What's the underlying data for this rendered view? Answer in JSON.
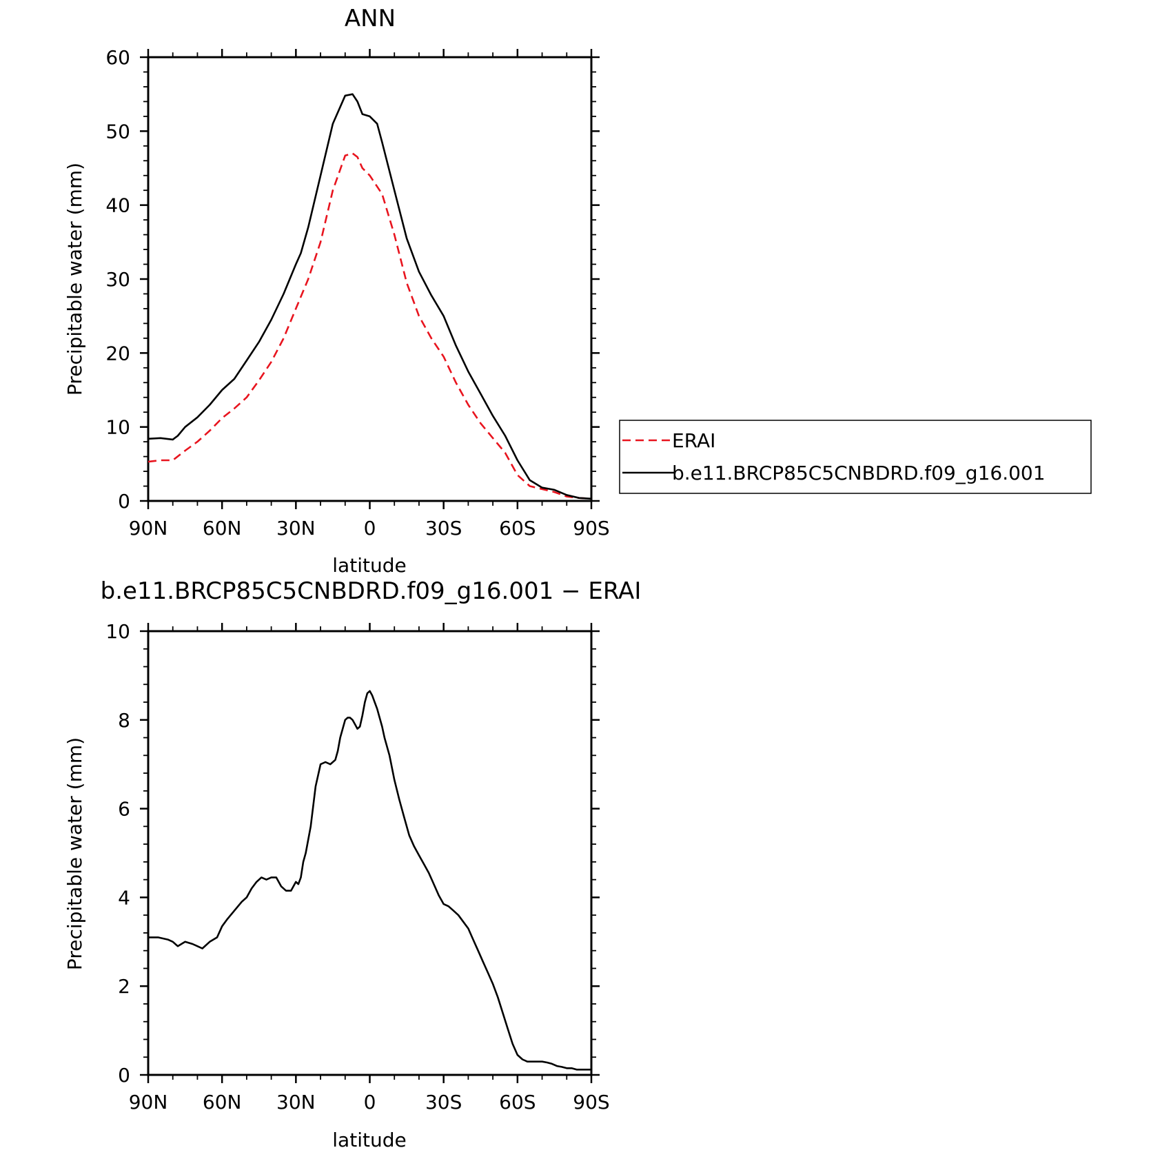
{
  "chart_data": [
    {
      "type": "line",
      "title": "ANN",
      "xlabel": "latitude",
      "ylabel": "Precipitable water (mm)",
      "xlim": [
        90,
        -90
      ],
      "ylim": [
        0,
        60
      ],
      "x_ticks": [
        90,
        60,
        30,
        0,
        -30,
        -60,
        -90
      ],
      "x_tick_labels": [
        "90N",
        "60N",
        "30N",
        "0",
        "30S",
        "60S",
        "90S"
      ],
      "y_ticks": [
        0,
        10,
        20,
        30,
        40,
        50,
        60
      ],
      "y_tick_labels": [
        "0",
        "10",
        "20",
        "30",
        "40",
        "50",
        "60"
      ],
      "legend_position": "right",
      "series": [
        {
          "name": "ERAI",
          "color": "#e8141e",
          "style": "dashed",
          "x": [
            90,
            85,
            80,
            75,
            70,
            65,
            60,
            55,
            50,
            45,
            40,
            35,
            30,
            25,
            20,
            15,
            10,
            7,
            5,
            3,
            0,
            -5,
            -10,
            -15,
            -20,
            -25,
            -30,
            -35,
            -40,
            -45,
            -50,
            -55,
            -60,
            -65,
            -70,
            -75,
            -80,
            -85,
            -90
          ],
          "values": [
            5.3,
            5.5,
            5.5,
            6.8,
            8.0,
            9.5,
            11.2,
            12.5,
            14.0,
            16.3,
            18.8,
            22.0,
            26.0,
            30.0,
            35.0,
            42.0,
            46.7,
            47.0,
            46.5,
            45.0,
            44.0,
            41.5,
            36.0,
            29.5,
            25.0,
            22.0,
            19.5,
            16.0,
            13.0,
            10.5,
            8.5,
            6.5,
            3.5,
            2.0,
            1.6,
            1.2,
            0.6,
            0.4,
            0.3
          ]
        },
        {
          "name": "b.e11.BRCP85C5CNBDRD.f09_g16.001",
          "color": "#000000",
          "style": "solid",
          "x": [
            90,
            85,
            80,
            78,
            75,
            70,
            65,
            60,
            55,
            50,
            45,
            40,
            35,
            30,
            28,
            25,
            20,
            15,
            10,
            7,
            5,
            3,
            0,
            -3,
            -5,
            -10,
            -15,
            -20,
            -25,
            -30,
            -35,
            -40,
            -45,
            -50,
            -55,
            -60,
            -65,
            -70,
            -75,
            -80,
            -85,
            -90
          ],
          "values": [
            8.4,
            8.5,
            8.3,
            8.8,
            10.0,
            11.3,
            13.0,
            15.0,
            16.5,
            19.0,
            21.5,
            24.5,
            28.0,
            32.0,
            33.5,
            37.0,
            44.0,
            51.0,
            54.8,
            55.0,
            54.0,
            52.3,
            52.0,
            51.0,
            48.5,
            42.0,
            35.5,
            31.0,
            27.8,
            25.0,
            21.0,
            17.5,
            14.5,
            11.5,
            8.8,
            5.5,
            2.8,
            1.8,
            1.5,
            0.8,
            0.4,
            0.3
          ]
        }
      ]
    },
    {
      "type": "line",
      "title": "b.e11.BRCP85C5CNBDRD.f09_g16.001 − ERAI",
      "xlabel": "latitude",
      "ylabel": "Precipitable water (mm)",
      "xlim": [
        90,
        -90
      ],
      "ylim": [
        0,
        10
      ],
      "x_ticks": [
        90,
        60,
        30,
        0,
        -30,
        -60,
        -90
      ],
      "x_tick_labels": [
        "90N",
        "60N",
        "30N",
        "0",
        "30S",
        "60S",
        "90S"
      ],
      "y_ticks": [
        0,
        2,
        4,
        6,
        8,
        10
      ],
      "y_tick_labels": [
        "0",
        "2",
        "4",
        "6",
        "8",
        "10"
      ],
      "series": [
        {
          "color": "#000000",
          "style": "solid",
          "x": [
            90,
            86,
            82,
            80,
            78,
            75,
            72,
            70,
            68,
            65,
            62,
            60,
            58,
            55,
            52,
            50,
            48,
            46,
            44,
            42,
            40,
            38,
            36,
            34,
            32,
            30,
            29,
            28,
            27,
            26,
            24,
            22,
            20,
            18,
            16,
            15,
            14,
            13,
            12,
            10,
            9,
            8,
            7,
            6,
            5,
            4,
            3,
            2,
            1,
            0,
            -1,
            -2,
            -3,
            -4,
            -5,
            -6,
            -8,
            -10,
            -12,
            -14,
            -16,
            -18,
            -20,
            -22,
            -24,
            -26,
            -28,
            -30,
            -32,
            -34,
            -36,
            -38,
            -40,
            -42,
            -44,
            -46,
            -48,
            -50,
            -52,
            -54,
            -56,
            -58,
            -60,
            -62,
            -64,
            -66,
            -68,
            -70,
            -72,
            -74,
            -76,
            -78,
            -80,
            -82,
            -84,
            -86,
            -88,
            -90
          ],
          "values": [
            3.1,
            3.1,
            3.05,
            3.0,
            2.9,
            3.0,
            2.95,
            2.9,
            2.85,
            3.0,
            3.1,
            3.35,
            3.5,
            3.7,
            3.9,
            4.0,
            4.2,
            4.35,
            4.45,
            4.4,
            4.45,
            4.45,
            4.25,
            4.15,
            4.15,
            4.35,
            4.3,
            4.45,
            4.8,
            5.0,
            5.6,
            6.5,
            7.0,
            7.05,
            7.0,
            7.05,
            7.1,
            7.3,
            7.6,
            8.0,
            8.05,
            8.05,
            8.0,
            7.9,
            7.8,
            7.85,
            8.1,
            8.4,
            8.6,
            8.65,
            8.55,
            8.4,
            8.25,
            8.05,
            7.85,
            7.6,
            7.2,
            6.65,
            6.2,
            5.8,
            5.4,
            5.15,
            4.95,
            4.75,
            4.55,
            4.3,
            4.05,
            3.85,
            3.8,
            3.7,
            3.6,
            3.45,
            3.3,
            3.05,
            2.8,
            2.55,
            2.3,
            2.05,
            1.75,
            1.4,
            1.05,
            0.7,
            0.45,
            0.35,
            0.3,
            0.3,
            0.3,
            0.3,
            0.28,
            0.25,
            0.2,
            0.18,
            0.15,
            0.15,
            0.12,
            0.12,
            0.12,
            0.12
          ]
        }
      ]
    }
  ]
}
